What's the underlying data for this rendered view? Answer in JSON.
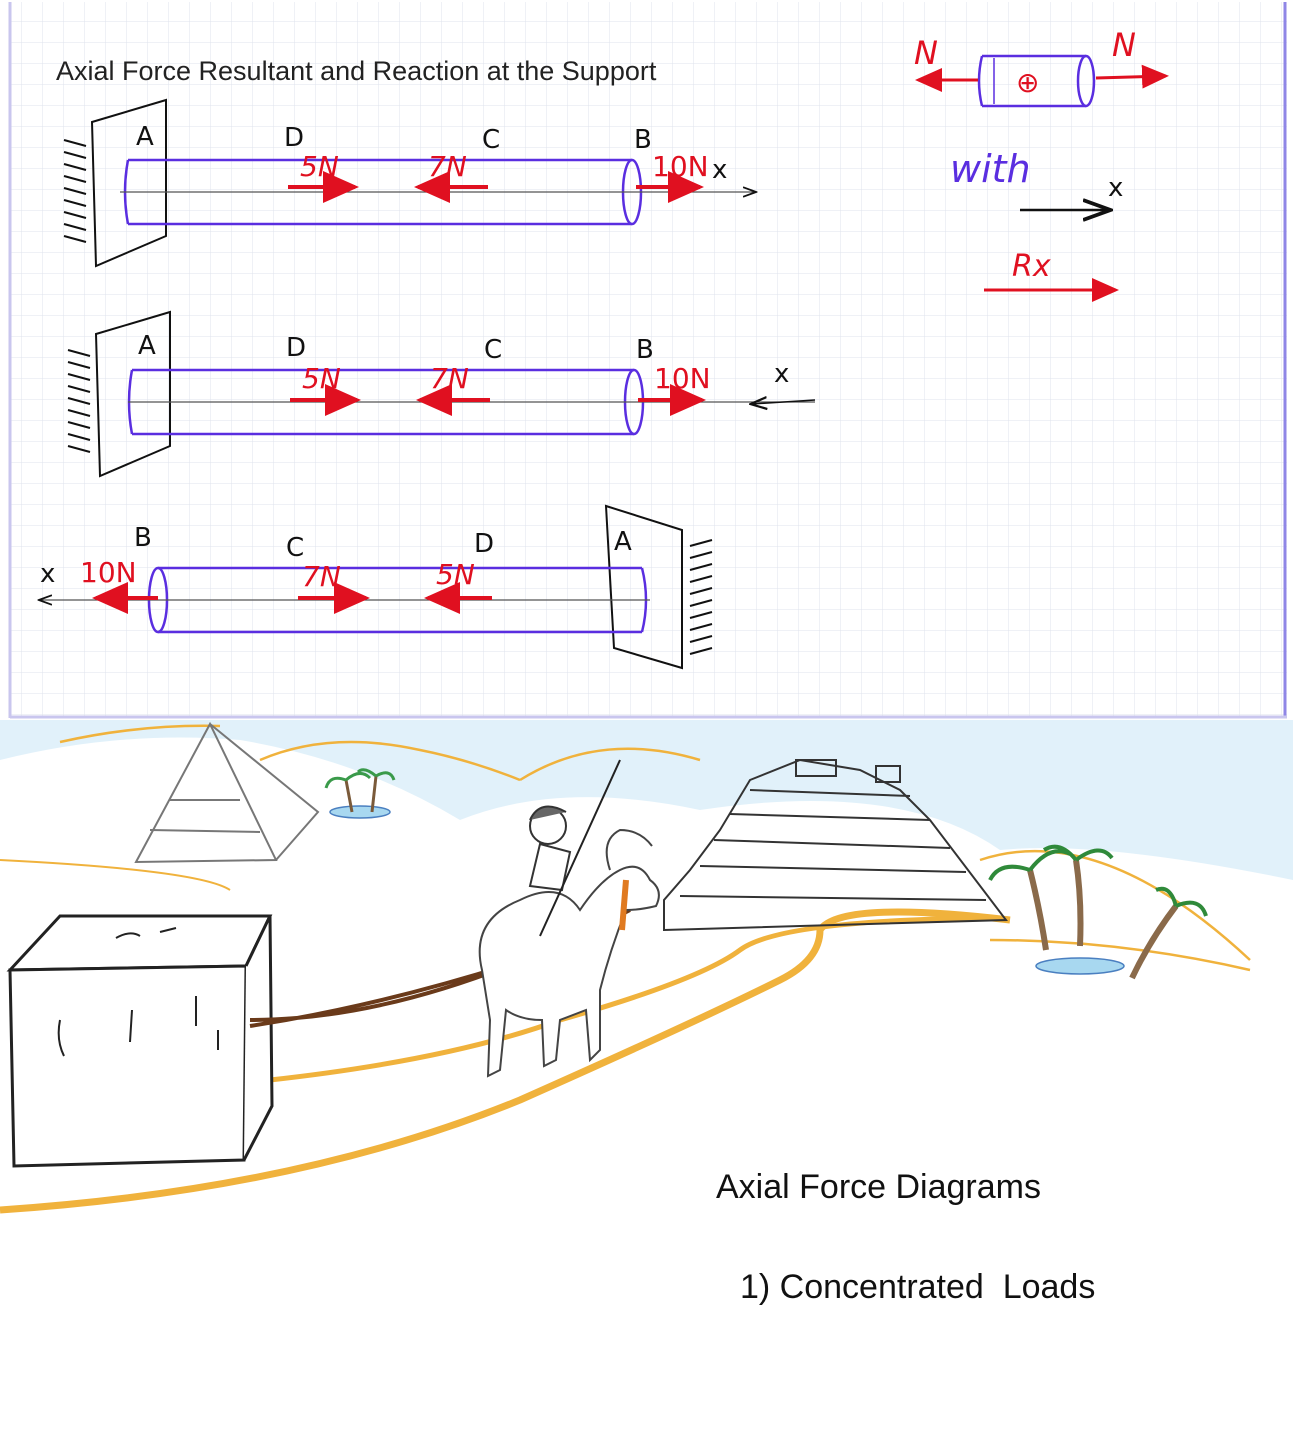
{
  "slide": {
    "title": "Axial Force Resultant and Reaction at the Support"
  },
  "colors": {
    "force": "#e01020",
    "beam": "#5a2ee0",
    "ink": "#111111",
    "grid": "#d6dbe6",
    "sand": "#f0b23c",
    "sky": "#cfe9f7"
  },
  "beam1": {
    "labels": {
      "a": "A",
      "d": "D",
      "c": "C",
      "b": "B"
    },
    "forces": {
      "d": "5N",
      "c": "7N",
      "b": "10N"
    },
    "axis": "x"
  },
  "beam2": {
    "labels": {
      "a": "A",
      "d": "D",
      "c": "C",
      "b": "B"
    },
    "forces": {
      "d": "5N",
      "c": "7N",
      "b": "10N"
    },
    "axis": "x"
  },
  "beam3": {
    "labels": {
      "b": "B",
      "c": "C",
      "d": "D",
      "a": "A"
    },
    "forces": {
      "b": "10N",
      "c": "7N",
      "d": "5N"
    },
    "axis": "x"
  },
  "legend": {
    "n_left": "N",
    "n_right": "N",
    "plus": "⊕",
    "with": "with",
    "axis": "x",
    "reaction": "Rx"
  },
  "scene": {
    "heading": "Axial Force Diagrams",
    "subheading": "1) Concentrated  Loads"
  }
}
